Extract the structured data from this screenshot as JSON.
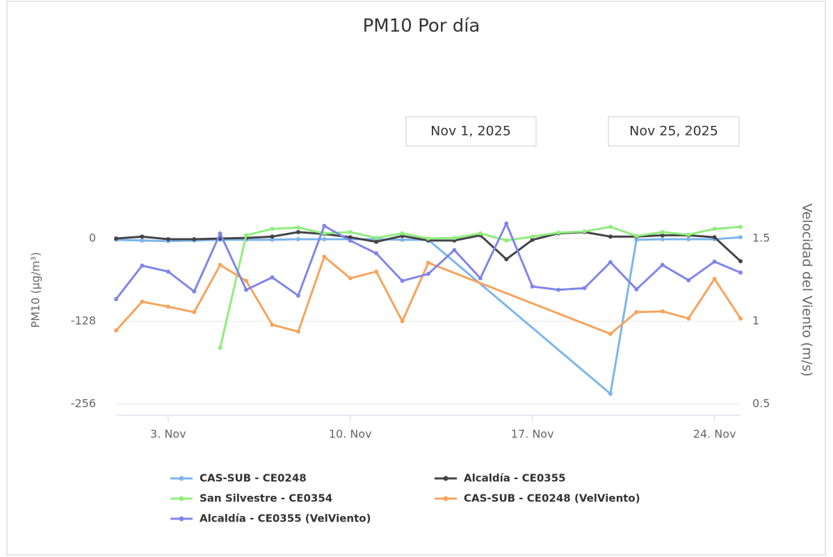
{
  "chart_data": {
    "type": "line",
    "title": "PM10 Por día",
    "range_from": "Nov 1, 2025",
    "range_to": "Nov 25, 2025",
    "y_label": "PM10 (µg/m³)",
    "y2_label": "Velocidad del Viento (m/s)",
    "xlim": [
      1,
      25
    ],
    "xticks": [
      {
        "value": 3,
        "label": "3. Nov"
      },
      {
        "value": 10,
        "label": "10. Nov"
      },
      {
        "value": 17,
        "label": "17. Nov"
      },
      {
        "value": 24,
        "label": "24. Nov"
      }
    ],
    "ylim": [
      -273,
      114
    ],
    "yticks": [
      -256,
      -128,
      0
    ],
    "y2lim": [
      0.433,
      1.945
    ],
    "y2ticks": [
      0.5,
      1,
      1.5
    ],
    "grid": true,
    "legend": "bottom",
    "series": [
      {
        "name": "CAS-SUB - CE0248",
        "color": "#7cb5ec",
        "x": [
          1,
          2,
          3,
          4,
          5,
          6,
          7,
          8,
          9,
          10,
          11,
          12,
          13,
          20,
          21,
          22,
          23,
          24,
          25
        ],
        "values": [
          -2,
          -3,
          -4,
          -3,
          -2,
          -2,
          -2,
          -1,
          -1,
          -1,
          -1,
          -2,
          -2,
          -240,
          -2,
          -1,
          -1,
          -1,
          2
        ]
      },
      {
        "name": "Alcaldía - CE0355",
        "color": "#434348",
        "x": [
          1,
          2,
          3,
          4,
          5,
          6,
          7,
          8,
          9,
          10,
          11,
          12,
          13,
          14,
          15,
          16,
          17,
          18,
          19,
          20,
          21,
          22,
          23,
          24,
          25
        ],
        "values": [
          0,
          3,
          -1,
          -1,
          0,
          1,
          3,
          10,
          7,
          2,
          -5,
          4,
          -3,
          -3,
          5,
          -32,
          -2,
          8,
          10,
          3,
          3,
          5,
          5,
          2,
          -35
        ]
      },
      {
        "name": "San Silvestre - CE0354",
        "color": "#90ed7d",
        "x": [
          5,
          6,
          7,
          8,
          9,
          10,
          11,
          12,
          13,
          14,
          15,
          16,
          17,
          18,
          19,
          20,
          21,
          22,
          23,
          24,
          25
        ],
        "values": [
          -169,
          5,
          15,
          17,
          8,
          10,
          1,
          8,
          0,
          1,
          8,
          -3,
          3,
          9,
          11,
          18,
          4,
          10,
          6,
          15,
          18
        ]
      },
      {
        "name": "CAS-SUB - CE0248 (VelViento)",
        "color": "#f7a35c",
        "axis": "y2",
        "x": [
          1,
          2,
          3,
          4,
          5,
          6,
          7,
          8,
          9,
          10,
          11,
          12,
          13,
          20,
          21,
          22,
          23,
          24,
          25
        ],
        "values": [
          0.945,
          1.118,
          1.088,
          1.055,
          1.34,
          1.244,
          0.979,
          0.937,
          1.39,
          1.26,
          1.3,
          1.0,
          1.353,
          0.924,
          1.055,
          1.06,
          1.017,
          1.256,
          1.017
        ]
      },
      {
        "name": "Alcaldía - CE0355 (VelViento)",
        "color": "#8085e9",
        "axis": "y2",
        "x": [
          1,
          2,
          3,
          4,
          5,
          6,
          7,
          8,
          9,
          10,
          11,
          12,
          13,
          14,
          15,
          16,
          17,
          18,
          19,
          20,
          21,
          22,
          23,
          24,
          25
        ],
        "values": [
          1.134,
          1.336,
          1.3,
          1.18,
          1.53,
          1.19,
          1.265,
          1.155,
          1.576,
          1.487,
          1.41,
          1.244,
          1.286,
          1.43,
          1.26,
          1.59,
          1.21,
          1.19,
          1.2,
          1.357,
          1.193,
          1.34,
          1.248,
          1.36,
          1.294
        ]
      }
    ]
  }
}
